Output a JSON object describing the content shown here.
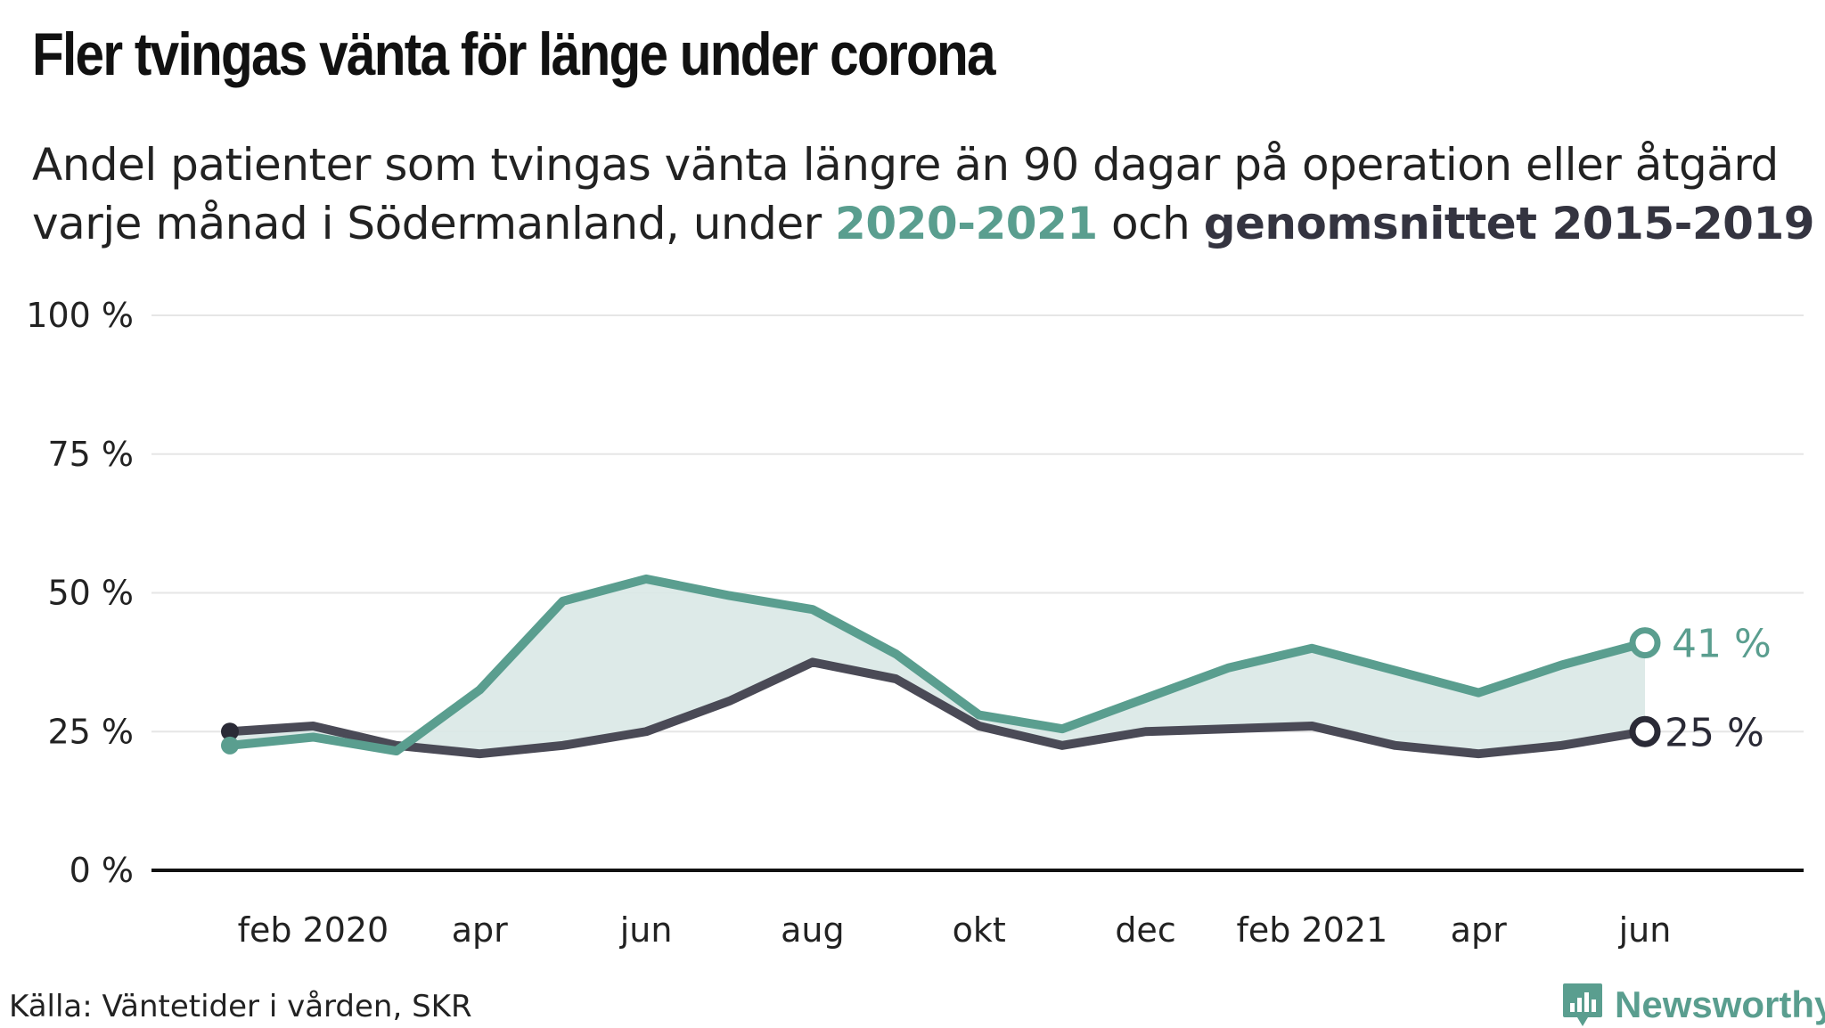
{
  "header": {
    "title": "Fler tvingas vänta för länge under corona",
    "subtitle_part1": "Andel patienter som tvingas vänta längre än 90 dagar på operation eller åtgärd varje månad i Södermanland, under ",
    "subtitle_hl1": "2020-2021",
    "subtitle_part2": " och ",
    "subtitle_hl2": "genomsnittet 2015-2019"
  },
  "footer": {
    "source": "Källa: Väntetider i vården, SKR",
    "brand": "Newsworthy"
  },
  "colors": {
    "series_2020_2021": "#5a9e8f",
    "series_avg": "#4a4a56",
    "area_fill": "#d9e8e5",
    "baseline": "#111111",
    "grid": "#e6e6e6"
  },
  "chart_data": {
    "type": "line",
    "title": "Fler tvingas vänta för länge under corona",
    "xlabel": "",
    "ylabel": "",
    "ylim": [
      0,
      100
    ],
    "y_ticks": [
      0,
      25,
      50,
      75,
      100
    ],
    "y_tick_labels": [
      "0 %",
      "25 %",
      "50 %",
      "75 %",
      "100 %"
    ],
    "x": [
      "2020-01",
      "2020-02",
      "2020-03",
      "2020-04",
      "2020-05",
      "2020-06",
      "2020-07",
      "2020-08",
      "2020-09",
      "2020-10",
      "2020-11",
      "2020-12",
      "2021-01",
      "2021-02",
      "2021-03",
      "2021-04",
      "2021-05",
      "2021-06"
    ],
    "x_tick_positions": [
      "2020-02",
      "2020-04",
      "2020-06",
      "2020-08",
      "2020-10",
      "2020-12",
      "2021-02",
      "2021-04",
      "2021-06"
    ],
    "x_tick_labels": [
      "feb 2020",
      "apr",
      "jun",
      "aug",
      "okt",
      "dec",
      "feb 2021",
      "apr",
      "jun"
    ],
    "series": [
      {
        "name": "2020-2021",
        "values": [
          22.5,
          24,
          21.5,
          32.5,
          48.5,
          52.5,
          49.5,
          47,
          39,
          28,
          25.5,
          31,
          36.5,
          40,
          36,
          32,
          37,
          41
        ],
        "end_label": "41 %"
      },
      {
        "name": "genomsnittet 2015-2019",
        "values": [
          25,
          26,
          22.5,
          21,
          22.5,
          25,
          30.5,
          37.5,
          34.5,
          26,
          22.5,
          25,
          25.5,
          26,
          22.5,
          21,
          22.5,
          25
        ],
        "end_label": "25 %"
      }
    ],
    "grid": true,
    "legend": "none"
  }
}
